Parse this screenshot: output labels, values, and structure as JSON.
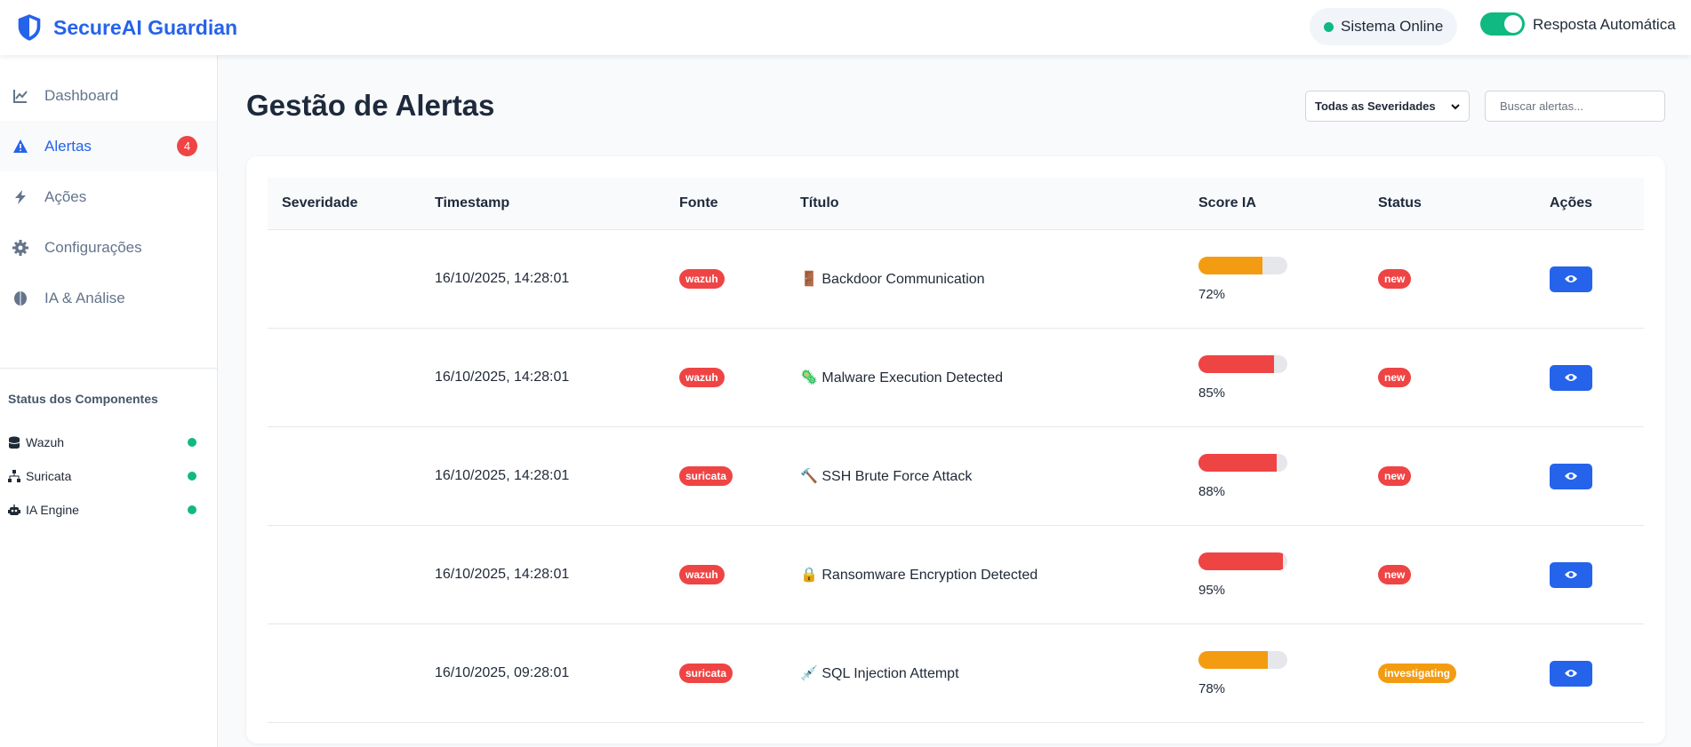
{
  "header": {
    "brand": "SecureAI Guardian",
    "status": "Sistema Online",
    "auto_response": "Resposta Automática"
  },
  "sidebar": {
    "nav": [
      {
        "label": "Dashboard",
        "icon": "chart"
      },
      {
        "label": "Alertas",
        "icon": "warn",
        "badge": 4,
        "active": true
      },
      {
        "label": "Ações",
        "icon": "bolt"
      },
      {
        "label": "Configurações",
        "icon": "gear"
      },
      {
        "label": "IA & Análise",
        "icon": "brain"
      }
    ],
    "components_title": "Status dos Componentes",
    "components": [
      {
        "label": "Wazuh",
        "icon": "db"
      },
      {
        "label": "Suricata",
        "icon": "net"
      },
      {
        "label": "IA Engine",
        "icon": "bot"
      }
    ]
  },
  "main": {
    "title": "Gestão de Alertas",
    "filter": "Todas as Severidades",
    "search_placeholder": "Buscar alertas...",
    "table": {
      "columns": [
        "Severidade",
        "Timestamp",
        "Fonte",
        "Título",
        "Score IA",
        "Status",
        "Ações"
      ],
      "rows": [
        {
          "timestamp": "16/10/2025, 14:28:01",
          "source": "wazuh",
          "title": "🚪 Backdoor Communication",
          "score": 72,
          "score_label": "72%",
          "score_color": "#f39c12",
          "status": "new",
          "status_color": "#ef4444"
        },
        {
          "timestamp": "16/10/2025, 14:28:01",
          "source": "wazuh",
          "title": "🦠 Malware Execution Detected",
          "score": 85,
          "score_label": "85%",
          "score_color": "#ef4444",
          "status": "new",
          "status_color": "#ef4444"
        },
        {
          "timestamp": "16/10/2025, 14:28:01",
          "source": "suricata",
          "title": "🔨 SSH Brute Force Attack",
          "score": 88,
          "score_label": "88%",
          "score_color": "#ef4444",
          "status": "new",
          "status_color": "#ef4444"
        },
        {
          "timestamp": "16/10/2025, 14:28:01",
          "source": "wazuh",
          "title": "🔒 Ransomware Encryption Detected",
          "score": 95,
          "score_label": "95%",
          "score_color": "#ef4444",
          "status": "new",
          "status_color": "#ef4444"
        },
        {
          "timestamp": "16/10/2025, 09:28:01",
          "source": "suricata",
          "title": "💉 SQL Injection Attempt",
          "score": 78,
          "score_label": "78%",
          "score_color": "#f39c12",
          "status": "investigating",
          "status_color": "#f39c12"
        }
      ]
    }
  }
}
